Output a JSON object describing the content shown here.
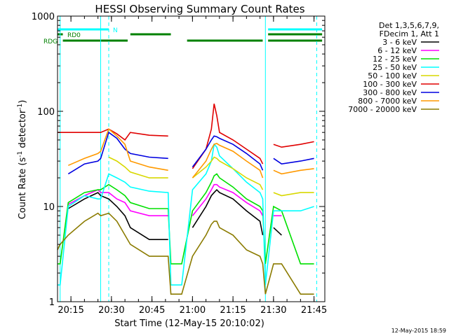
{
  "chart_data": {
    "type": "line",
    "title": "HESSI Observing Summary Count Rates",
    "xlabel": "Start Time (12-May-15 20:10:02)",
    "ylabel_main": "Count Rate (s",
    "ylabel_sup1": "-1",
    "ylabel_mid": " detector",
    "ylabel_sup2": "-1",
    "ylabel_end": ")",
    "y_scale": "log",
    "ylim": [
      1,
      1000
    ],
    "xlim": [
      "20:10:02",
      "21:49:00"
    ],
    "x_ticks": [
      "20:15",
      "20:30",
      "20:45",
      "21:00",
      "21:15",
      "21:30",
      "21:45"
    ],
    "y_ticks": [
      "1",
      "10",
      "100",
      "1000"
    ],
    "timestamp": "12-May-2015 18:59",
    "legend": {
      "header": [
        "Det 1,3,5,6,7,9,",
        "FDecim 1, Att 1"
      ],
      "entries": [
        {
          "label": "3 - 6 keV",
          "color": "#000000"
        },
        {
          "label": "6 - 12 keV",
          "color": "#ff00ff"
        },
        {
          "label": "12 - 25 keV",
          "color": "#00e000"
        },
        {
          "label": "25 - 50 keV",
          "color": "#00ffff"
        },
        {
          "label": "50 - 100 keV",
          "color": "#d8d800"
        },
        {
          "label": "100 - 300 keV",
          "color": "#e00000"
        },
        {
          "label": "300 - 800 keV",
          "color": "#0000e0"
        },
        {
          "label": "800 - 7000 keV",
          "color": "#ff9900"
        },
        {
          "label": "7000 - 20000 keV",
          "color": "#8b7b00"
        }
      ]
    },
    "flag_bars": [
      {
        "label": "N",
        "color": "#00ffff",
        "spans": [
          [
            "20:10",
            "20:29"
          ],
          [
            "21:28",
            "21:48"
          ]
        ]
      },
      {
        "label": "RD0",
        "color": "#008000",
        "spans": [
          [
            "20:10",
            "20:12"
          ],
          [
            "20:37",
            "20:52"
          ],
          [
            "21:28",
            "21:48"
          ]
        ]
      },
      {
        "label": "RDG",
        "color": "#008000",
        "spans": [
          [
            "20:12",
            "20:36"
          ],
          [
            "20:58",
            "21:26"
          ],
          [
            "21:28",
            "21:48"
          ]
        ]
      }
    ],
    "saa_lines": [
      "20:11",
      "20:26",
      "21:27"
    ],
    "night_lines": [
      "20:29",
      "21:46"
    ],
    "series_times": [
      "20:10",
      "20:11",
      "20:14",
      "20:20",
      "20:25",
      "20:26",
      "20:29",
      "20:32",
      "20:35",
      "20:37",
      "20:44",
      "20:51",
      "20:52",
      "20:56",
      "21:00",
      "21:05",
      "21:07",
      "21:08",
      "21:09",
      "21:10",
      "21:15",
      "21:20",
      "21:25",
      "21:26",
      "21:27",
      "21:30",
      "21:33",
      "21:40",
      "21:45"
    ],
    "series": [
      {
        "name": "3 - 6 keV",
        "values": [
          null,
          null,
          9.5,
          12,
          14,
          13,
          12,
          10,
          8,
          6,
          4.5,
          4.5,
          null,
          null,
          6,
          10,
          13,
          14,
          15,
          14,
          12,
          9,
          7,
          5,
          null,
          6,
          5,
          null,
          null
        ]
      },
      {
        "name": "6 - 12 keV",
        "values": [
          null,
          null,
          10.5,
          13,
          15,
          14,
          14,
          12,
          11,
          9,
          8,
          8,
          null,
          null,
          8,
          12,
          15,
          17,
          17,
          16,
          14,
          11,
          9,
          8,
          null,
          8,
          8,
          null,
          null
        ]
      },
      {
        "name": "12 - 25 keV",
        "values": [
          2.5,
          2.5,
          11,
          14,
          15,
          15,
          17,
          15,
          13,
          11,
          9.5,
          9.5,
          2.5,
          2.5,
          9,
          14,
          18,
          21,
          22,
          20,
          16,
          12,
          10,
          9,
          2.5,
          10,
          9,
          2.5,
          2.5
        ]
      },
      {
        "name": "25 - 50 keV",
        "values": [
          1.5,
          1.5,
          10,
          13,
          12,
          12,
          22,
          20,
          18,
          16,
          14.5,
          14,
          1.5,
          1.5,
          15,
          22,
          30,
          45,
          42,
          34,
          25,
          18,
          14,
          12,
          1.5,
          9,
          9,
          9,
          10
        ]
      },
      {
        "name": "50 - 100 keV",
        "values": [
          null,
          null,
          null,
          null,
          null,
          null,
          33,
          30,
          26,
          23,
          20,
          20,
          null,
          null,
          20,
          26,
          30,
          33,
          32,
          30,
          25,
          20,
          17,
          15,
          null,
          14,
          13,
          14,
          14
        ]
      },
      {
        "name": "100 - 300 keV",
        "values": [
          60,
          60,
          60,
          60,
          60,
          60,
          65,
          58,
          50,
          60,
          56,
          55,
          null,
          null,
          25,
          40,
          65,
          120,
          90,
          60,
          50,
          40,
          32,
          28,
          null,
          45,
          42,
          45,
          48
        ]
      },
      {
        "name": "300 - 800 keV",
        "values": [
          null,
          null,
          22,
          28,
          30,
          32,
          60,
          52,
          40,
          36,
          33,
          32,
          null,
          null,
          26,
          40,
          50,
          55,
          54,
          52,
          45,
          36,
          28,
          24,
          null,
          32,
          28,
          30,
          32
        ]
      },
      {
        "name": "800 - 7000 keV",
        "values": [
          null,
          null,
          27,
          32,
          36,
          38,
          65,
          55,
          45,
          30,
          26,
          24,
          null,
          null,
          20,
          30,
          40,
          45,
          46,
          44,
          38,
          30,
          24,
          20,
          null,
          24,
          22,
          24,
          25
        ]
      },
      {
        "name": "7000 - 20000 keV",
        "values": [
          3.5,
          4,
          5,
          7,
          8.5,
          8,
          8.5,
          7,
          5,
          4,
          3,
          3,
          1.2,
          1.2,
          3,
          5,
          6.5,
          7,
          7,
          6,
          5,
          3.5,
          3,
          2.5,
          1.2,
          2.5,
          2.5,
          1.2,
          1.2
        ]
      }
    ]
  }
}
